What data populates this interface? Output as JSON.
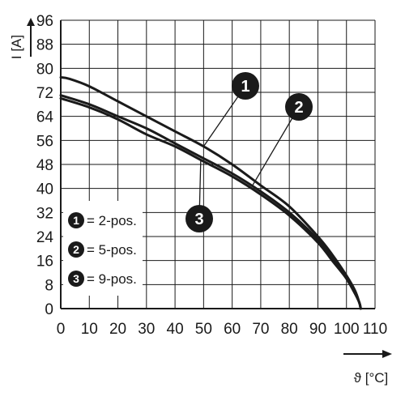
{
  "chart_data": {
    "type": "line",
    "title": "",
    "ylabel": "I [A]",
    "xlabel": "ϑ [°C]",
    "xlim": [
      0,
      110
    ],
    "ylim": [
      0,
      96
    ],
    "x_ticks": [
      0,
      10,
      20,
      30,
      40,
      50,
      60,
      70,
      80,
      90,
      100,
      110
    ],
    "y_ticks": [
      0,
      8,
      16,
      24,
      32,
      40,
      48,
      56,
      64,
      72,
      80,
      88,
      96
    ],
    "x_tick_labels": [
      "0",
      "10",
      "20",
      "30",
      "40",
      "50",
      "60",
      "70",
      "80",
      "90",
      "100",
      "110"
    ],
    "y_tick_labels": [
      "0",
      "8",
      "16",
      "24",
      "32",
      "40",
      "48",
      "56",
      "64",
      "72",
      "80",
      "88",
      "96"
    ],
    "grid": true,
    "legend_position": "bottom-left",
    "series": [
      {
        "name": "2-pos.",
        "badge": "1",
        "x": [
          0,
          3,
          10,
          20,
          30,
          40,
          50,
          60,
          70,
          80,
          90,
          95,
          100,
          103,
          104.5,
          105
        ],
        "y": [
          77,
          76.5,
          74,
          69,
          64,
          59,
          54,
          48,
          41,
          34,
          24,
          18,
          11,
          6,
          2,
          0
        ]
      },
      {
        "name": "5-pos.",
        "badge": "2",
        "x": [
          0,
          10,
          20,
          30,
          40,
          50,
          60,
          70,
          80,
          90,
          95,
          100,
          103,
          104.5,
          105
        ],
        "y": [
          71,
          68,
          64,
          60,
          55,
          50,
          45,
          39,
          32,
          23,
          17,
          10,
          5,
          2,
          0
        ]
      },
      {
        "name": "9-pos.",
        "badge": "3",
        "x": [
          0,
          10,
          20,
          30,
          40,
          50,
          60,
          70,
          80,
          90,
          95,
          100,
          103,
          104.5,
          105
        ],
        "y": [
          70,
          67,
          63,
          58,
          54,
          49,
          44,
          38,
          31,
          22,
          16,
          10,
          5,
          2,
          0
        ]
      }
    ],
    "callouts": [
      {
        "badge": "1",
        "series": "2-pos.",
        "at_x": 50
      },
      {
        "badge": "2",
        "series": "5-pos.",
        "at_x": 67
      },
      {
        "badge": "3",
        "series": "9-pos.",
        "at_x": 49
      }
    ],
    "legend": [
      {
        "badge": "1",
        "label": "= 2-pos."
      },
      {
        "badge": "2",
        "label": "= 5-pos."
      },
      {
        "badge": "3",
        "label": "= 9-pos."
      }
    ]
  }
}
